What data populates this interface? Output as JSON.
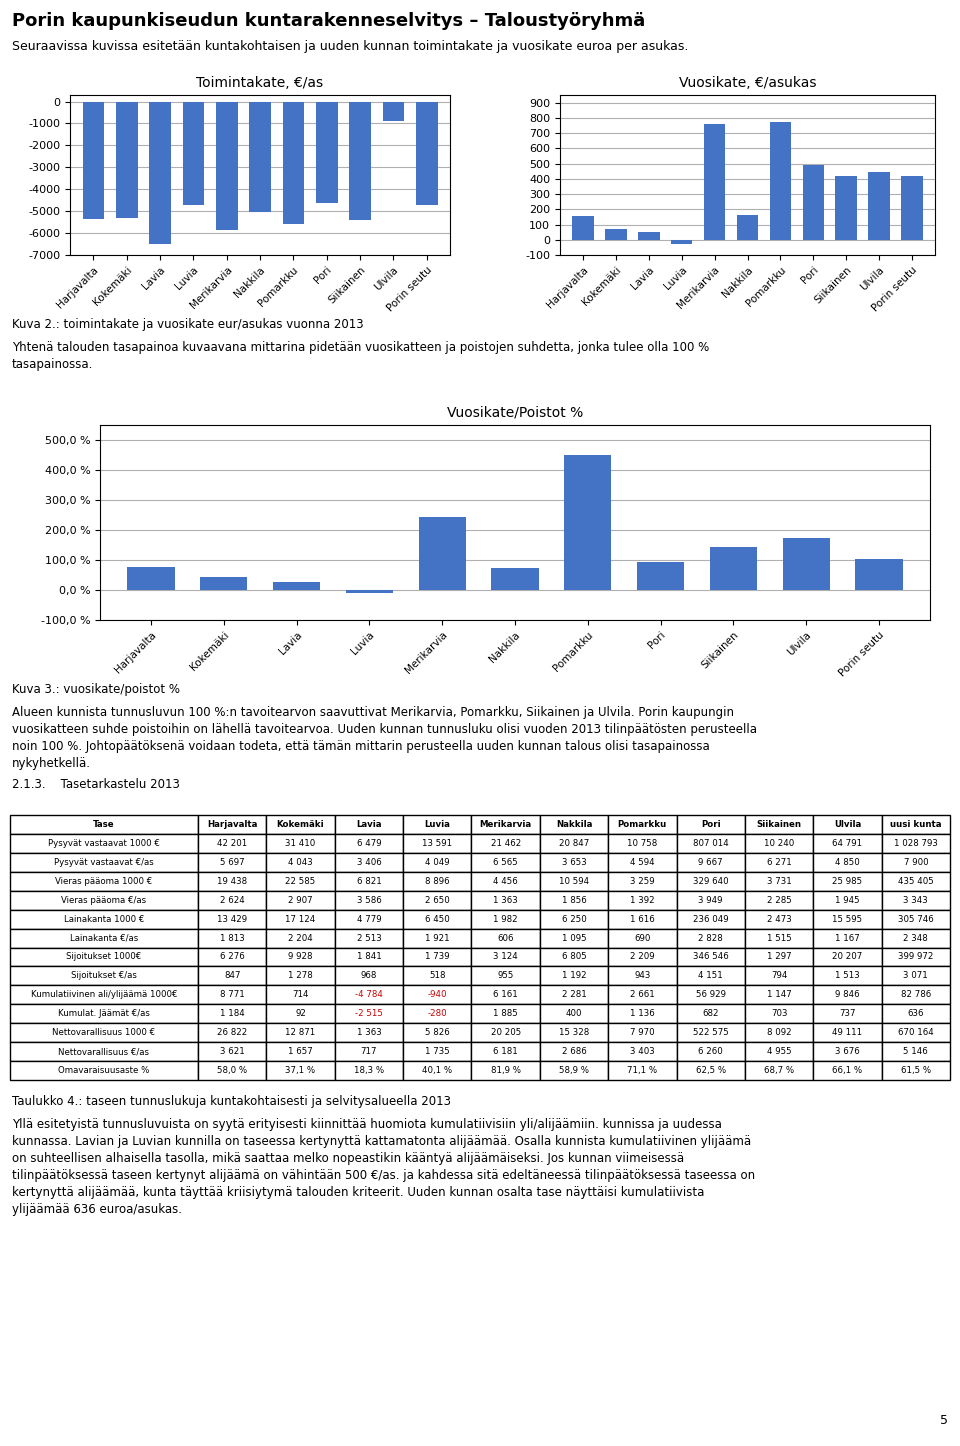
{
  "title": "Porin kaupunkiseudun kuntarakenneselvitys – Taloustyöryhmä",
  "subtitle": "Seuraavissa kuvissa esitetään kuntakohtaisen ja uuden kunnan toimintakate ja vuosikate euroa per asukas.",
  "annotations": [
    "5"
  ],
  "chart_data": [
    {
      "type": "bar",
      "title": "Toimintakate, €/as",
      "categories": [
        "Harjavalta",
        "Kokemäki",
        "Lavia",
        "Luvia",
        "Merikarvia",
        "Nakkila",
        "Pomarkku",
        "Pori",
        "Siikainen",
        "Ulvila",
        "Porin seutu"
      ],
      "values": [
        -5350,
        -5300,
        -6500,
        -4700,
        -5850,
        -5050,
        -5600,
        -4650,
        -5400,
        -870,
        -4700
      ],
      "color": "#4472C4",
      "ylim": [
        -7000,
        300
      ],
      "yticks": [
        -7000,
        -6000,
        -5000,
        -4000,
        -3000,
        -2000,
        -1000,
        0
      ],
      "grid": true
    },
    {
      "type": "bar",
      "title": "Vuosikate, €/asukas",
      "categories": [
        "Harjavalta",
        "Kokemäki",
        "Lavia",
        "Luvia",
        "Merikarvia",
        "Nakkila",
        "Pomarkku",
        "Pori",
        "Siikainen",
        "Ulvila",
        "Porin seutu"
      ],
      "values": [
        155,
        72,
        52,
        -30,
        760,
        162,
        775,
        490,
        420,
        445,
        420
      ],
      "color": "#4472C4",
      "ylim": [
        -100,
        950
      ],
      "yticks": [
        -100,
        0,
        100,
        200,
        300,
        400,
        500,
        600,
        700,
        800,
        900
      ],
      "grid": true,
      "annotations": [
        "Kuva 2.: toimintakate ja vuosikate eur/asukas vuonna 2013",
        "Yhtenä talouden tasapainoa kuvaavana mittarina pidetään vuosikatteen ja poistojen suhdetta, jonka tulee olla 100 %\ntasapainossa."
      ]
    },
    {
      "type": "bar",
      "title": "Vuosikate/Poistot %",
      "categories": [
        "Harjavalta",
        "Kokemäki",
        "Lavia",
        "Luvia",
        "Merikarvia",
        "Nakkila",
        "Pomarkku",
        "Pori",
        "Siikainen",
        "Ulvila",
        "Porin seutu"
      ],
      "values": [
        78,
        45,
        28,
        -10,
        243,
        75,
        450,
        95,
        145,
        173,
        103
      ],
      "color": "#4472C4",
      "ylim": [
        -100,
        550
      ],
      "yticks": [
        {
          "value": -100,
          "label": "-100,0 %"
        },
        {
          "value": 0,
          "label": "0,0 %"
        },
        {
          "value": 100,
          "label": "100,0 %"
        },
        {
          "value": 200,
          "label": "200,0 %"
        },
        {
          "value": 300,
          "label": "300,0 %"
        },
        {
          "value": 400,
          "label": "400,0 %"
        },
        {
          "value": 500,
          "label": "500,0 %"
        }
      ],
      "grid": true,
      "annotations": [
        "Kuva 3.: vuosikate/poistot %",
        "Alueen kunnista tunnusluvun 100 %:n tavoitearvon saavuttivat Merikarvia, Pomarkku, Siikainen ja Ulvila. Porin kaupungin\nvuosikatteen suhde poistoihin on lähellä tavoitearvoa. Uuden kunnan tunnusluku olisi vuoden 2013 tilinpäätösten perusteella\nnoin 100 %. Johtopäätöksenä voidaan todeta, että tämän mittarin perusteella uuden kunnan talous olisi tasapainossa\nnykyhetkellä.",
        "2.1.3.    Tasetarkastelu 2013"
      ]
    },
    {
      "type": "table",
      "columns": [
        "Tase",
        "Harjavalta",
        "Kokemäki",
        "Lavia",
        "Luvia",
        "Merikarvia",
        "Nakkila",
        "Pomarkku",
        "Pori",
        "Siikainen",
        "Ulvila",
        "uusi kunta"
      ],
      "rows": [
        [
          "Pysyvät vastaavat 1000 €",
          "42 201",
          "31 410",
          "6 479",
          "13 591",
          "21 462",
          "20 847",
          "10 758",
          "807 014",
          "10 240",
          "64 791",
          "1 028 793"
        ],
        [
          "Pysyvät vastaavat €/as",
          "5 697",
          "4 043",
          "3 406",
          "4 049",
          "6 565",
          "3 653",
          "4 594",
          "9 667",
          "6 271",
          "4 850",
          "7 900"
        ],
        [
          "Vieras pääoma 1000 €",
          "19 438",
          "22 585",
          "6 821",
          "8 896",
          "4 456",
          "10 594",
          "3 259",
          "329 640",
          "3 731",
          "25 985",
          "435 405"
        ],
        [
          "Vieras pääoma €/as",
          "2 624",
          "2 907",
          "3 586",
          "2 650",
          "1 363",
          "1 856",
          "1 392",
          "3 949",
          "2 285",
          "1 945",
          "3 343"
        ],
        [
          "Lainakanta 1000 €",
          "13 429",
          "17 124",
          "4 779",
          "6 450",
          "1 982",
          "6 250",
          "1 616",
          "236 049",
          "2 473",
          "15 595",
          "305 746"
        ],
        [
          "Lainakanta €/as",
          "1 813",
          "2 204",
          "2 513",
          "1 921",
          "606",
          "1 095",
          "690",
          "2 828",
          "1 515",
          "1 167",
          "2 348"
        ],
        [
          "Sijoitukset 1000€",
          "6 276",
          "9 928",
          "1 841",
          "1 739",
          "3 124",
          "6 805",
          "2 209",
          "346 546",
          "1 297",
          "20 207",
          "399 972"
        ],
        [
          "Sijoitukset €/as",
          "847",
          "1 278",
          "968",
          "518",
          "955",
          "1 192",
          "943",
          "4 151",
          "794",
          "1 513",
          "3 071"
        ],
        [
          "Kumulatiivinen ali/ylijäämä 1000€",
          "8 771",
          "714",
          "-4 784",
          "-940",
          "6 161",
          "2 281",
          "2 661",
          "56 929",
          "1 147",
          "9 846",
          "82 786"
        ],
        [
          "Kumulat. Jäämät €/as",
          "1 184",
          "92",
          "-2 515",
          "-280",
          "1 885",
          "400",
          "1 136",
          "682",
          "703",
          "737",
          "636"
        ],
        [
          "Nettovarallisuus 1000 €",
          "26 822",
          "12 871",
          "1 363",
          "5 826",
          "20 205",
          "15 328",
          "7 970",
          "522 575",
          "8 092",
          "49 111",
          "670 164"
        ],
        [
          "Nettovarallisuus €/as",
          "3 621",
          "1 657",
          "717",
          "1 735",
          "6 181",
          "2 686",
          "3 403",
          "6 260",
          "4 955",
          "3 676",
          "5 146"
        ],
        [
          "Omavaraisuusaste %",
          "58,0 %",
          "37,1 %",
          "18,3 %",
          "40,1 %",
          "81,9 %",
          "58,9 %",
          "71,1 %",
          "62,5 %",
          "68,7 %",
          "66,1 %",
          "61,5 %"
        ]
      ],
      "color": "#cc0000",
      "annotations": [
        "Taulukko 4.: taseen tunnuslukuja kuntakohtaisesti ja selvitysalueella 2013",
        "Yllä esitetyistä tunnusluvuista on syytä erityisesti kiinnittää huomiota kumulatiivisiin yli/alijäämiin. kunnissa ja uudessa\nkunnassa. Lavian ja Luvian kunnilla on taseessa kertynyttä kattamatonta alijäämää. Osalla kunnista kumulatiivinen ylijäämä\non suhteellisen alhaisella tasolla, mikä saattaa melko nopeastikin kääntyä alijäämäiseksi. Jos kunnan viimeisessä\ntilinpäätöksessä taseen kertynyt alijäämä on vähintään 500 €/as. ja kahdessa sitä edeltäneessä tilinpäätöksessä taseessa on\nkertynyttä alijäämää, kunta täyttää kriisiytymä talouden kriteerit. Uuden kunnan osalta tase näyttäisi kumulatiivista\nylijäämää 636 euroa/asukas."
      ]
    }
  ]
}
